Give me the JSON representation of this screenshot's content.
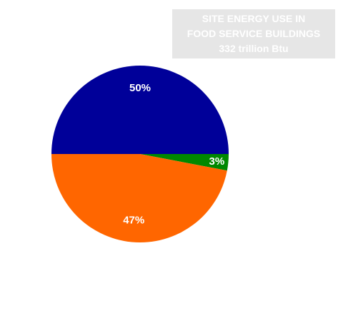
{
  "chart_data": {
    "type": "pie",
    "title_lines": [
      "SITE ENERGY USE IN",
      "FOOD SERVICE BUILDINGS",
      "332 trillion Btu"
    ],
    "slices": [
      {
        "label": "50%",
        "value": 50,
        "color": "#000099"
      },
      {
        "label": "3%",
        "value": 3,
        "color": "#008800"
      },
      {
        "label": "47%",
        "value": 47,
        "color": "#ff6600"
      }
    ],
    "legend": "none"
  }
}
